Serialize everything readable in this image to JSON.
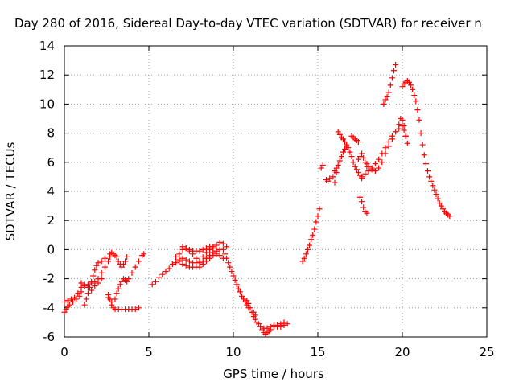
{
  "chart_data": {
    "type": "scatter",
    "title": "Day 280 of 2016, Sidereal Day-to-day VTEC variation (SDTVAR) for receiver n",
    "xlabel": "GPS time / hours",
    "ylabel": "SDTVAR / TECUs",
    "xlim": [
      0,
      25
    ],
    "ylim": [
      -6,
      14
    ],
    "x_ticks": [
      0,
      5,
      10,
      15,
      20,
      25
    ],
    "y_ticks": [
      -6,
      -4,
      -2,
      0,
      2,
      4,
      6,
      8,
      10,
      12,
      14
    ],
    "x_tick_labels": [
      "0",
      "5",
      "10",
      "15",
      "20",
      "25"
    ],
    "y_tick_labels": [
      "-6",
      "-4",
      "-2",
      "0",
      "2",
      "4",
      "6",
      "8",
      "10",
      "12",
      "14"
    ],
    "grid": true,
    "marker": "+",
    "color": "#ff0000",
    "series": [
      {
        "points": [
          [
            0.0,
            -4.3
          ],
          [
            0.1,
            -4.1
          ],
          [
            0.2,
            -3.9
          ],
          [
            0.3,
            -3.8
          ],
          [
            0.5,
            -3.6
          ],
          [
            0.7,
            -3.4
          ],
          [
            0.9,
            -3.2
          ],
          [
            1.0,
            -2.9
          ],
          [
            1.2,
            -2.5
          ],
          [
            1.4,
            -2.4
          ],
          [
            1.6,
            -2.3
          ],
          [
            1.8,
            -2.2
          ],
          [
            2.0,
            -2.0
          ],
          [
            2.2,
            -1.6
          ],
          [
            2.4,
            -1.2
          ],
          [
            2.6,
            -0.8
          ],
          [
            2.7,
            -0.5
          ],
          [
            0.0,
            -3.6
          ],
          [
            0.2,
            -3.5
          ],
          [
            0.4,
            -3.4
          ],
          [
            0.6,
            -3.3
          ],
          [
            0.8,
            -3.0
          ],
          [
            1.0,
            -2.6
          ],
          [
            1.2,
            -3.8
          ],
          [
            1.3,
            -3.4
          ],
          [
            1.4,
            -3.0
          ],
          [
            1.5,
            -2.6
          ],
          [
            1.6,
            -2.2
          ],
          [
            1.7,
            -1.8
          ],
          [
            1.8,
            -1.4
          ],
          [
            1.9,
            -1.1
          ],
          [
            2.0,
            -0.9
          ],
          [
            2.2,
            -0.8
          ],
          [
            2.4,
            -0.6
          ],
          [
            1.0,
            -2.3
          ],
          [
            1.2,
            -2.4
          ],
          [
            1.4,
            -2.6
          ],
          [
            1.6,
            -2.8
          ],
          [
            1.8,
            -2.5
          ],
          [
            2.0,
            -2.3
          ],
          [
            2.2,
            -2.0
          ],
          [
            2.6,
            -3.1
          ],
          [
            2.7,
            -3.4
          ],
          [
            2.8,
            -3.8
          ],
          [
            2.9,
            -4.0
          ],
          [
            3.0,
            -4.1
          ],
          [
            3.2,
            -4.1
          ],
          [
            3.4,
            -4.1
          ],
          [
            3.6,
            -4.1
          ],
          [
            3.8,
            -4.1
          ],
          [
            4.0,
            -4.1
          ],
          [
            4.2,
            -4.1
          ],
          [
            4.4,
            -4.0
          ],
          [
            2.6,
            -3.3
          ],
          [
            2.8,
            -3.6
          ],
          [
            3.0,
            -3.4
          ],
          [
            3.1,
            -3.0
          ],
          [
            3.2,
            -2.7
          ],
          [
            3.3,
            -2.4
          ],
          [
            3.4,
            -2.2
          ],
          [
            3.5,
            -2.0
          ],
          [
            3.6,
            -2.1
          ],
          [
            3.7,
            -2.2
          ],
          [
            3.8,
            -2.0
          ],
          [
            4.0,
            -1.6
          ],
          [
            4.2,
            -1.2
          ],
          [
            4.4,
            -0.8
          ],
          [
            4.6,
            -0.4
          ],
          [
            4.7,
            -0.3
          ],
          [
            2.7,
            -0.3
          ],
          [
            2.8,
            -0.2
          ],
          [
            2.9,
            -0.3
          ],
          [
            3.0,
            -0.4
          ],
          [
            3.1,
            -0.5
          ],
          [
            3.2,
            -0.8
          ],
          [
            3.3,
            -1.0
          ],
          [
            3.4,
            -1.2
          ],
          [
            3.5,
            -1.0
          ],
          [
            3.6,
            -0.8
          ],
          [
            3.7,
            -0.5
          ],
          [
            5.2,
            -2.4
          ],
          [
            5.4,
            -2.2
          ],
          [
            5.6,
            -1.9
          ],
          [
            5.8,
            -1.7
          ],
          [
            6.0,
            -1.5
          ],
          [
            6.2,
            -1.3
          ],
          [
            6.4,
            -1.0
          ],
          [
            6.6,
            -0.9
          ],
          [
            6.8,
            -0.7
          ],
          [
            7.0,
            -0.6
          ],
          [
            7.2,
            -0.7
          ],
          [
            7.4,
            -0.8
          ],
          [
            7.6,
            -0.9
          ],
          [
            7.8,
            -0.9
          ],
          [
            8.0,
            -0.9
          ],
          [
            8.2,
            -0.8
          ],
          [
            8.4,
            -0.6
          ],
          [
            8.6,
            -0.4
          ],
          [
            8.8,
            -0.2
          ],
          [
            9.0,
            -0.1
          ],
          [
            9.2,
            0.0
          ],
          [
            6.8,
            -0.8
          ],
          [
            7.0,
            -1.0
          ],
          [
            7.2,
            -1.1
          ],
          [
            7.4,
            -1.2
          ],
          [
            7.6,
            -1.2
          ],
          [
            7.8,
            -1.2
          ],
          [
            8.0,
            -1.2
          ],
          [
            8.2,
            -1.0
          ],
          [
            8.4,
            -0.8
          ],
          [
            8.6,
            -0.6
          ],
          [
            8.8,
            -0.4
          ],
          [
            9.0,
            -0.3
          ],
          [
            6.6,
            -0.5
          ],
          [
            6.8,
            -0.3
          ],
          [
            7.0,
            0.0
          ],
          [
            7.2,
            0.1
          ],
          [
            7.4,
            -0.1
          ],
          [
            7.6,
            -0.3
          ],
          [
            7.8,
            -0.6
          ],
          [
            8.0,
            -0.8
          ],
          [
            8.2,
            -0.5
          ],
          [
            8.4,
            -0.2
          ],
          [
            8.6,
            0.0
          ],
          [
            8.8,
            0.1
          ],
          [
            9.0,
            -0.1
          ],
          [
            9.2,
            -0.4
          ],
          [
            9.4,
            -0.6
          ],
          [
            7.0,
            0.2
          ],
          [
            7.2,
            0.1
          ],
          [
            7.4,
            0.0
          ],
          [
            7.6,
            -0.1
          ],
          [
            7.8,
            -0.1
          ],
          [
            8.0,
            -0.1
          ],
          [
            8.2,
            0.0
          ],
          [
            8.4,
            0.1
          ],
          [
            8.6,
            0.2
          ],
          [
            8.8,
            0.2
          ],
          [
            9.0,
            0.3
          ],
          [
            9.2,
            0.5
          ],
          [
            9.4,
            0.4
          ],
          [
            9.6,
            0.2
          ],
          [
            9.4,
            0.0
          ],
          [
            9.5,
            -0.3
          ],
          [
            9.6,
            -0.6
          ],
          [
            9.7,
            -0.9
          ],
          [
            9.8,
            -1.2
          ],
          [
            9.9,
            -1.5
          ],
          [
            10.0,
            -1.8
          ],
          [
            10.1,
            -2.1
          ],
          [
            10.2,
            -2.4
          ],
          [
            10.3,
            -2.7
          ],
          [
            10.4,
            -2.9
          ],
          [
            10.5,
            -3.2
          ],
          [
            10.6,
            -3.4
          ],
          [
            10.7,
            -3.6
          ],
          [
            10.8,
            -3.8
          ],
          [
            10.9,
            -4.0
          ],
          [
            10.8,
            -3.5
          ],
          [
            10.9,
            -3.7
          ],
          [
            11.0,
            -4.0
          ],
          [
            11.1,
            -4.3
          ],
          [
            11.2,
            -4.6
          ],
          [
            11.3,
            -4.8
          ],
          [
            11.4,
            -5.0
          ],
          [
            11.2,
            -4.3
          ],
          [
            11.3,
            -4.5
          ],
          [
            11.5,
            -5.1
          ],
          [
            11.6,
            -5.3
          ],
          [
            11.7,
            -5.5
          ],
          [
            11.8,
            -5.7
          ],
          [
            11.9,
            -5.8
          ],
          [
            12.0,
            -5.7
          ],
          [
            12.1,
            -5.6
          ],
          [
            12.2,
            -5.5
          ],
          [
            12.4,
            -5.3
          ],
          [
            12.6,
            -5.3
          ],
          [
            12.8,
            -5.3
          ],
          [
            13.0,
            -5.2
          ],
          [
            13.2,
            -5.1
          ],
          [
            11.8,
            -5.4
          ],
          [
            12.0,
            -5.4
          ],
          [
            12.2,
            -5.3
          ],
          [
            12.4,
            -5.2
          ],
          [
            12.6,
            -5.2
          ],
          [
            12.8,
            -5.1
          ],
          [
            13.0,
            -5.0
          ],
          [
            14.1,
            -0.8
          ],
          [
            14.2,
            -0.6
          ],
          [
            14.3,
            -0.3
          ],
          [
            14.4,
            0.0
          ],
          [
            14.5,
            0.3
          ],
          [
            14.6,
            0.7
          ],
          [
            14.7,
            1.0
          ],
          [
            14.8,
            1.4
          ],
          [
            14.9,
            1.9
          ],
          [
            15.0,
            2.3
          ],
          [
            15.1,
            2.8
          ],
          [
            15.2,
            5.6
          ],
          [
            15.3,
            5.8
          ],
          [
            15.5,
            4.8
          ],
          [
            15.6,
            4.7
          ],
          [
            15.7,
            4.9
          ],
          [
            15.9,
            5.0
          ],
          [
            16.0,
            4.6
          ],
          [
            16.1,
            5.3
          ],
          [
            16.0,
            5.4
          ],
          [
            16.1,
            5.6
          ],
          [
            16.2,
            5.8
          ],
          [
            16.3,
            6.1
          ],
          [
            16.4,
            6.4
          ],
          [
            16.5,
            6.7
          ],
          [
            16.6,
            6.9
          ],
          [
            16.7,
            7.1
          ],
          [
            16.8,
            7.0
          ],
          [
            16.9,
            6.7
          ],
          [
            17.0,
            6.4
          ],
          [
            17.1,
            6.0
          ],
          [
            17.2,
            5.7
          ],
          [
            17.3,
            5.5
          ],
          [
            17.4,
            5.3
          ],
          [
            17.5,
            5.1
          ],
          [
            17.6,
            4.9
          ],
          [
            16.2,
            8.1
          ],
          [
            16.3,
            7.9
          ],
          [
            16.4,
            7.7
          ],
          [
            16.5,
            7.6
          ],
          [
            16.6,
            7.4
          ],
          [
            16.7,
            7.2
          ],
          [
            17.0,
            7.8
          ],
          [
            17.1,
            7.7
          ],
          [
            17.2,
            7.6
          ],
          [
            17.3,
            7.5
          ],
          [
            17.4,
            7.4
          ],
          [
            17.4,
            6.2
          ],
          [
            17.5,
            6.4
          ],
          [
            17.6,
            6.6
          ],
          [
            17.7,
            6.3
          ],
          [
            17.8,
            6.0
          ],
          [
            17.9,
            5.7
          ],
          [
            17.5,
            3.6
          ],
          [
            17.6,
            3.3
          ],
          [
            17.7,
            2.9
          ],
          [
            17.8,
            2.6
          ],
          [
            17.9,
            2.5
          ],
          [
            17.6,
            5.0
          ],
          [
            17.8,
            5.2
          ],
          [
            18.0,
            5.4
          ],
          [
            18.2,
            5.6
          ],
          [
            18.4,
            5.9
          ],
          [
            18.6,
            6.2
          ],
          [
            18.8,
            6.6
          ],
          [
            19.0,
            7.0
          ],
          [
            19.2,
            7.4
          ],
          [
            19.4,
            7.8
          ],
          [
            19.6,
            8.1
          ],
          [
            19.8,
            8.3
          ],
          [
            20.0,
            8.5
          ],
          [
            20.1,
            8.2
          ],
          [
            20.2,
            7.8
          ],
          [
            20.3,
            7.3
          ],
          [
            17.9,
            5.9
          ],
          [
            18.0,
            5.7
          ],
          [
            18.2,
            5.5
          ],
          [
            18.4,
            5.4
          ],
          [
            18.6,
            5.6
          ],
          [
            18.8,
            6.0
          ],
          [
            19.0,
            6.6
          ],
          [
            19.2,
            7.1
          ],
          [
            19.4,
            7.6
          ],
          [
            19.6,
            8.1
          ],
          [
            19.8,
            8.6
          ],
          [
            19.9,
            9.0
          ],
          [
            20.0,
            8.9
          ],
          [
            20.1,
            8.5
          ],
          [
            20.2,
            7.8
          ],
          [
            18.9,
            10.0
          ],
          [
            19.0,
            10.3
          ],
          [
            19.1,
            10.5
          ],
          [
            19.2,
            10.8
          ],
          [
            19.3,
            11.3
          ],
          [
            19.4,
            11.8
          ],
          [
            19.5,
            12.3
          ],
          [
            19.6,
            12.7
          ],
          [
            20.0,
            11.2
          ],
          [
            20.1,
            11.4
          ],
          [
            20.2,
            11.5
          ],
          [
            20.3,
            11.6
          ],
          [
            20.4,
            11.5
          ],
          [
            20.5,
            11.3
          ],
          [
            20.6,
            11.0
          ],
          [
            20.7,
            10.6
          ],
          [
            20.8,
            10.2
          ],
          [
            20.9,
            9.6
          ],
          [
            21.0,
            8.9
          ],
          [
            21.1,
            8.0
          ],
          [
            21.2,
            7.2
          ],
          [
            21.3,
            6.5
          ],
          [
            21.4,
            5.9
          ],
          [
            21.5,
            5.4
          ],
          [
            21.6,
            5.0
          ],
          [
            21.7,
            4.7
          ],
          [
            21.8,
            4.4
          ],
          [
            21.9,
            4.1
          ],
          [
            22.0,
            3.8
          ],
          [
            22.1,
            3.5
          ],
          [
            22.2,
            3.2
          ],
          [
            22.3,
            3.0
          ],
          [
            22.4,
            2.8
          ],
          [
            22.5,
            2.6
          ],
          [
            22.6,
            2.5
          ],
          [
            22.7,
            2.4
          ],
          [
            22.8,
            2.3
          ]
        ]
      }
    ]
  }
}
